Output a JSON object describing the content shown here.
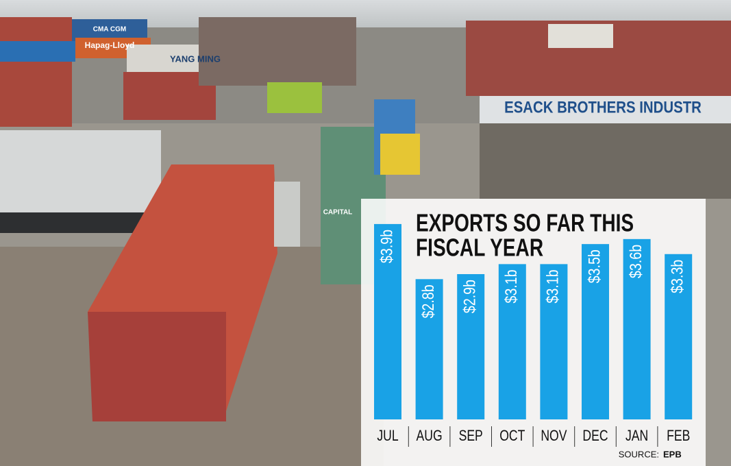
{
  "chart_data": {
    "type": "bar",
    "title": [
      "EXPORTS SO FAR THIS",
      "FISCAL YEAR"
    ],
    "categories": [
      "JUL",
      "AUG",
      "SEP",
      "OCT",
      "NOV",
      "DEC",
      "JAN",
      "FEB"
    ],
    "values": [
      3.9,
      2.8,
      2.9,
      3.1,
      3.1,
      3.5,
      3.6,
      3.3
    ],
    "value_labels": [
      "$3.9b",
      "$2.8b",
      "$2.9b",
      "$3.1b",
      "$3.1b",
      "$3.5b",
      "$3.6b",
      "$3.3b"
    ],
    "color": "#19a2e6",
    "source_label": "SOURCE:",
    "source": "EPB",
    "background_text": [
      "ESACK BROTHERS INDUSTR",
      "YANG MING",
      "Hapag-Lloyd",
      "CMA CGM",
      "CAPITAL"
    ]
  }
}
